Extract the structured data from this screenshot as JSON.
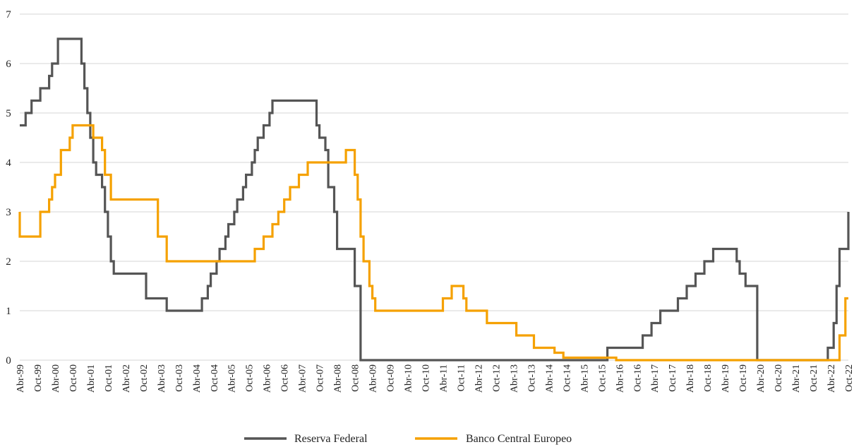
{
  "chart_data": {
    "type": "line",
    "step": true,
    "title": "",
    "xlabel": "",
    "ylabel": "",
    "ylim": [
      0,
      7
    ],
    "yticks": [
      "0",
      "1",
      "2",
      "3",
      "4",
      "5",
      "6",
      "7"
    ],
    "xlim": [
      "1999-04",
      "2022-10"
    ],
    "xtick_labels": [
      "Abr-99",
      "Oct-99",
      "Abr-00",
      "Oct-00",
      "Abr-01",
      "Oct-01",
      "Abr-02",
      "Oct-02",
      "Abr-03",
      "Oct-03",
      "Abr-04",
      "Oct-04",
      "Abr-05",
      "Oct-05",
      "Abr-06",
      "Oct-06",
      "Abr-07",
      "Oct-07",
      "Abr-08",
      "Oct-08",
      "Abr-09",
      "Oct-09",
      "Abr-10",
      "Oct-10",
      "Abr-11",
      "Oct-11",
      "Abr-12",
      "Oct-12",
      "Abr-13",
      "Oct-13",
      "Abr-14",
      "Oct-14",
      "Abr-15",
      "Oct-15",
      "Abr-16",
      "Oct-16",
      "Abr-17",
      "Oct-17",
      "Abr-18",
      "Oct-18",
      "Abr-19",
      "Oct-19",
      "Abr-20",
      "Oct-20",
      "Abr-21",
      "Oct-21",
      "Abr-22",
      "Oct-22"
    ],
    "grid": true,
    "legend_position": "bottom",
    "series": [
      {
        "name": "Reserva Federal",
        "color": "#555555",
        "x": [
          "1999-04",
          "1999-06",
          "1999-08",
          "1999-11",
          "2000-02",
          "2000-03",
          "2000-05",
          "2001-01",
          "2001-02",
          "2001-03",
          "2001-04",
          "2001-05",
          "2001-06",
          "2001-08",
          "2001-09",
          "2001-10",
          "2001-11",
          "2001-12",
          "2002-11",
          "2003-06",
          "2004-06",
          "2004-08",
          "2004-09",
          "2004-11",
          "2004-12",
          "2005-02",
          "2005-03",
          "2005-05",
          "2005-06",
          "2005-08",
          "2005-09",
          "2005-11",
          "2005-12",
          "2006-01",
          "2006-03",
          "2006-05",
          "2006-06",
          "2007-09",
          "2007-10",
          "2007-12",
          "2008-01",
          "2008-03",
          "2008-04",
          "2008-10",
          "2008-12",
          "2015-12",
          "2016-12",
          "2017-03",
          "2017-06",
          "2017-12",
          "2018-03",
          "2018-06",
          "2018-09",
          "2018-12",
          "2019-08",
          "2019-09",
          "2019-11",
          "2020-03",
          "2020-03",
          "2022-03",
          "2022-05",
          "2022-06",
          "2022-07",
          "2022-09",
          "2022-10"
        ],
        "y": [
          4.75,
          5.0,
          5.25,
          5.5,
          5.75,
          6.0,
          6.5,
          6.0,
          5.5,
          5.0,
          4.5,
          4.0,
          3.75,
          3.5,
          3.0,
          2.5,
          2.0,
          1.75,
          1.25,
          1.0,
          1.25,
          1.5,
          1.75,
          2.0,
          2.25,
          2.5,
          2.75,
          3.0,
          3.25,
          3.5,
          3.75,
          4.0,
          4.25,
          4.5,
          4.75,
          5.0,
          5.25,
          4.75,
          4.5,
          4.25,
          3.5,
          3.0,
          2.25,
          1.5,
          0.0,
          0.25,
          0.5,
          0.75,
          1.0,
          1.25,
          1.5,
          1.75,
          2.0,
          2.25,
          2.0,
          1.75,
          1.5,
          1.0,
          0.0,
          0.25,
          0.75,
          1.5,
          2.25,
          2.25,
          3.0
        ]
      },
      {
        "name": "Banco Central Europeo",
        "color": "#f5a100",
        "x": [
          "1999-04",
          "1999-04",
          "1999-11",
          "2000-02",
          "2000-03",
          "2000-04",
          "2000-06",
          "2000-09",
          "2000-10",
          "2001-05",
          "2001-08",
          "2001-09",
          "2001-11",
          "2003-03",
          "2003-06",
          "2005-12",
          "2006-03",
          "2006-06",
          "2006-08",
          "2006-10",
          "2006-12",
          "2007-03",
          "2007-06",
          "2008-07",
          "2008-10",
          "2008-11",
          "2008-12",
          "2009-01",
          "2009-03",
          "2009-04",
          "2009-05",
          "2011-04",
          "2011-07",
          "2011-11",
          "2011-12",
          "2012-07",
          "2013-05",
          "2013-11",
          "2014-06",
          "2014-09",
          "2016-03",
          "2022-07",
          "2022-09",
          "2022-10"
        ],
        "y": [
          3.0,
          2.5,
          3.0,
          3.25,
          3.5,
          3.75,
          4.25,
          4.5,
          4.75,
          4.5,
          4.25,
          3.75,
          3.25,
          2.5,
          2.0,
          2.25,
          2.5,
          2.75,
          3.0,
          3.25,
          3.5,
          3.75,
          4.0,
          4.25,
          3.75,
          3.25,
          2.5,
          2.0,
          1.5,
          1.25,
          1.0,
          1.25,
          1.5,
          1.25,
          1.0,
          0.75,
          0.5,
          0.25,
          0.15,
          0.05,
          0.0,
          0.5,
          1.25,
          1.25
        ]
      }
    ]
  }
}
